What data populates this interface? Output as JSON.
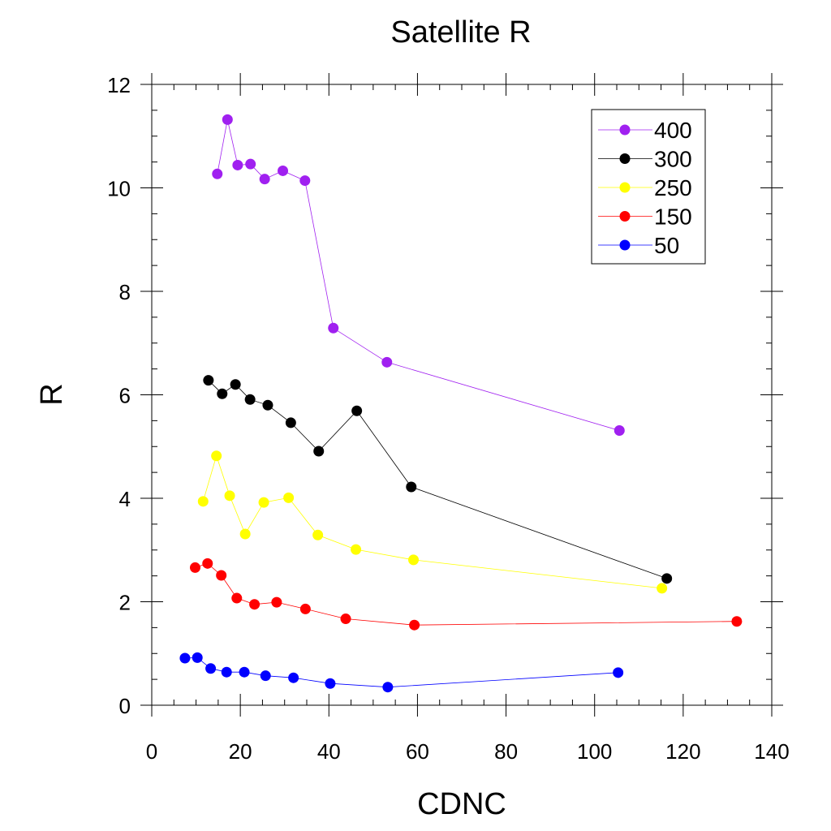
{
  "chart_data": {
    "type": "line",
    "title": "Satellite R",
    "xlabel": "CDNC",
    "ylabel": "R",
    "xlim": [
      0,
      140
    ],
    "ylim": [
      0,
      12
    ],
    "xticks": [
      "0",
      "20",
      "40",
      "60",
      "80",
      "100",
      "120",
      "140"
    ],
    "yticks": [
      "0",
      "2",
      "4",
      "6",
      "8",
      "10",
      "12"
    ],
    "grid": false,
    "legend_position": "top-right",
    "series": [
      {
        "name": "400",
        "color": "#a020f0",
        "points": [
          [
            14.8,
            10.27
          ],
          [
            17.1,
            11.32
          ],
          [
            19.4,
            10.44
          ],
          [
            22.3,
            10.46
          ],
          [
            25.5,
            10.17
          ],
          [
            29.6,
            10.33
          ],
          [
            34.6,
            10.14
          ],
          [
            41.0,
            7.29
          ],
          [
            53.1,
            6.63
          ],
          [
            105.6,
            5.31
          ]
        ]
      },
      {
        "name": "300",
        "color": "#000000",
        "points": [
          [
            12.8,
            6.28
          ],
          [
            15.9,
            6.02
          ],
          [
            18.9,
            6.2
          ],
          [
            22.2,
            5.91
          ],
          [
            26.2,
            5.8
          ],
          [
            31.4,
            5.46
          ],
          [
            37.7,
            4.91
          ],
          [
            46.3,
            5.69
          ],
          [
            58.6,
            4.22
          ],
          [
            116.3,
            2.45
          ]
        ]
      },
      {
        "name": "250",
        "color": "#ffff00",
        "points": [
          [
            11.6,
            3.94
          ],
          [
            14.6,
            4.82
          ],
          [
            17.6,
            4.05
          ],
          [
            21.1,
            3.31
          ],
          [
            25.3,
            3.92
          ],
          [
            30.9,
            4.01
          ],
          [
            37.5,
            3.29
          ],
          [
            46.1,
            3.01
          ],
          [
            59.1,
            2.81
          ],
          [
            115.2,
            2.26
          ]
        ]
      },
      {
        "name": "150",
        "color": "#ff0000",
        "points": [
          [
            9.8,
            2.66
          ],
          [
            12.6,
            2.74
          ],
          [
            15.7,
            2.51
          ],
          [
            19.2,
            2.07
          ],
          [
            23.2,
            1.95
          ],
          [
            28.2,
            1.99
          ],
          [
            34.7,
            1.86
          ],
          [
            43.8,
            1.67
          ],
          [
            59.3,
            1.55
          ],
          [
            132.1,
            1.62
          ]
        ]
      },
      {
        "name": "50",
        "color": "#0000ff",
        "points": [
          [
            7.5,
            0.91
          ],
          [
            10.3,
            0.92
          ],
          [
            13.3,
            0.71
          ],
          [
            16.9,
            0.64
          ],
          [
            20.9,
            0.64
          ],
          [
            25.7,
            0.57
          ],
          [
            32.0,
            0.53
          ],
          [
            40.3,
            0.42
          ],
          [
            53.3,
            0.35
          ],
          [
            105.3,
            0.63
          ]
        ]
      }
    ]
  }
}
